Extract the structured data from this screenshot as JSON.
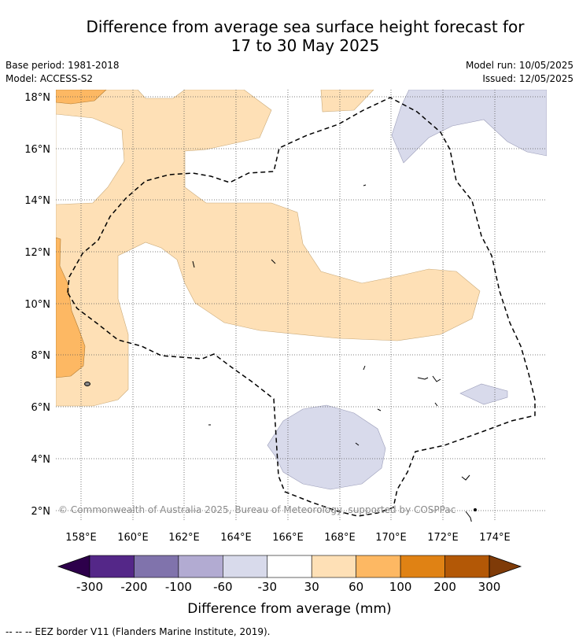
{
  "title_line1": "Difference from average sea surface height forecast for",
  "title_line2": "17 to 30 May 2025",
  "base_period": "Base period: 1981-2018",
  "model": "Model: ACCESS-S2",
  "model_run": "Model run: 10/05/2025",
  "issued": "Issued: 12/05/2025",
  "lat_labels": [
    "18°N",
    "16°N",
    "14°N",
    "12°N",
    "10°N",
    "8°N",
    "6°N",
    "4°N",
    "2°N"
  ],
  "lon_labels": [
    "158°E",
    "160°E",
    "162°E",
    "164°E",
    "166°E",
    "168°E",
    "170°E",
    "172°E",
    "174°E"
  ],
  "copyright": "© Commonwealth of Australia 2025, Bureau of Meteorology, supported by COSPPac",
  "colorbar": {
    "ticks": [
      "-300",
      "-200",
      "-100",
      "-60",
      "-30",
      "30",
      "60",
      "100",
      "200",
      "300"
    ],
    "colors": [
      "#2d004b",
      "#542788",
      "#8073ac",
      "#b2abd2",
      "#d8daeb",
      "#ffffff",
      "#fee0b6",
      "#fdb863",
      "#e08214",
      "#b35806",
      "#7f3b08"
    ],
    "label": "Difference from average (mm)"
  },
  "legend_note": "--  --  -- EEZ border V11 (Flanders Marine Institute, 2019)."
}
